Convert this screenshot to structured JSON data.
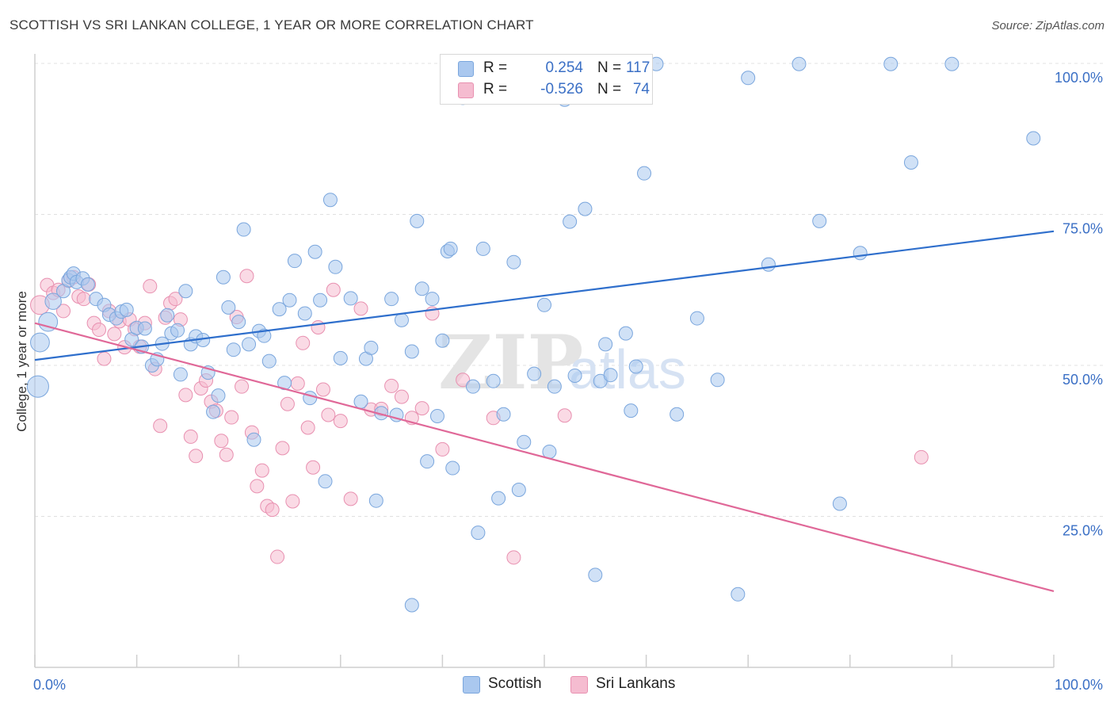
{
  "title": "SCOTTISH VS SRI LANKAN COLLEGE, 1 YEAR OR MORE CORRELATION CHART",
  "source": "Source: ZipAtlas.com",
  "watermark": {
    "zip": "ZIP",
    "atlas": "atlas"
  },
  "legend": {
    "r_label": "R =",
    "n_label": "N =",
    "rows": [
      {
        "r": "0.254",
        "n": "117"
      },
      {
        "r": "-0.526",
        "n": "74"
      }
    ]
  },
  "colors": {
    "scottish_fill": "#aac8ef",
    "scottish_stroke": "#7aa6dd",
    "scottish_line": "#2f6fcc",
    "srilankan_fill": "#f5bcd0",
    "srilankan_stroke": "#e890b0",
    "srilankan_line": "#e06898",
    "axis_text": "#3a6fc5",
    "grid": "#e0e0e0"
  },
  "chart_data": {
    "type": "scatter",
    "title": "SCOTTISH VS SRI LANKAN COLLEGE, 1 YEAR OR MORE CORRELATION CHART",
    "xlabel": "",
    "ylabel": "College, 1 year or more",
    "xlim": [
      0,
      100
    ],
    "ylim": [
      0,
      102
    ],
    "x_tick_labels": [
      "0.0%",
      "100.0%"
    ],
    "y_ticks": [
      25,
      50,
      75,
      100
    ],
    "y_tick_labels": [
      "25.0%",
      "50.0%",
      "75.0%",
      "100.0%"
    ],
    "grid": true,
    "legend_position": "top-center",
    "series": [
      {
        "name": "Scottish",
        "r": 0.254,
        "n": 117,
        "trend": {
          "x": [
            0,
            100
          ],
          "y": [
            50.9,
            72.2
          ]
        },
        "points": [
          [
            0.3,
            46.5,
            16
          ],
          [
            0.5,
            53.8,
            14
          ],
          [
            1.3,
            57.2,
            14
          ],
          [
            1.8,
            60.6,
            12
          ],
          [
            2.8,
            62.3,
            10
          ],
          [
            3.3,
            64.1,
            10
          ],
          [
            3.5,
            64.6,
            10
          ],
          [
            3.8,
            65.2,
            10
          ],
          [
            4.1,
            63.8,
            10
          ],
          [
            4.7,
            64.4,
            10
          ],
          [
            5.2,
            63.4,
            10
          ],
          [
            6.0,
            61.0,
            10
          ],
          [
            6.8,
            60.0,
            10
          ],
          [
            7.3,
            58.4,
            10
          ],
          [
            8.0,
            57.8,
            10
          ],
          [
            8.5,
            58.9,
            10
          ],
          [
            9.0,
            59.2,
            10
          ],
          [
            9.5,
            54.3,
            10
          ],
          [
            10.0,
            56.2,
            10
          ],
          [
            10.5,
            53.1,
            10
          ],
          [
            10.8,
            56.1,
            10
          ],
          [
            11.5,
            50.0,
            10
          ],
          [
            12.0,
            51.0,
            10
          ],
          [
            12.5,
            53.6,
            10
          ],
          [
            13.0,
            58.3,
            10
          ],
          [
            13.4,
            55.3,
            10
          ],
          [
            14.0,
            55.8,
            10
          ],
          [
            14.3,
            48.5,
            10
          ],
          [
            14.8,
            62.3,
            10
          ],
          [
            15.3,
            53.5,
            10
          ],
          [
            15.8,
            54.8,
            10
          ],
          [
            16.5,
            54.2,
            10
          ],
          [
            17.0,
            48.8,
            10
          ],
          [
            17.5,
            42.3,
            10
          ],
          [
            18.0,
            45.0,
            10
          ],
          [
            18.5,
            64.6,
            10
          ],
          [
            19.0,
            59.6,
            10
          ],
          [
            19.5,
            52.6,
            10
          ],
          [
            20.0,
            57.2,
            10
          ],
          [
            20.5,
            72.5,
            10
          ],
          [
            21.0,
            53.5,
            10
          ],
          [
            21.5,
            37.7,
            10
          ],
          [
            22.0,
            55.7,
            10
          ],
          [
            22.5,
            54.9,
            10
          ],
          [
            23.0,
            50.7,
            10
          ],
          [
            24.0,
            59.3,
            10
          ],
          [
            24.5,
            47.1,
            10
          ],
          [
            25.0,
            60.8,
            10
          ],
          [
            25.5,
            67.3,
            10
          ],
          [
            26.5,
            58.6,
            10
          ],
          [
            27.0,
            44.6,
            10
          ],
          [
            27.5,
            68.8,
            10
          ],
          [
            28.0,
            60.8,
            10
          ],
          [
            28.5,
            30.8,
            10
          ],
          [
            29.0,
            77.4,
            10
          ],
          [
            29.5,
            66.3,
            10
          ],
          [
            30.0,
            51.2,
            10
          ],
          [
            31.0,
            61.1,
            10
          ],
          [
            32.0,
            44.0,
            10
          ],
          [
            32.5,
            51.1,
            10
          ],
          [
            33.0,
            52.9,
            10
          ],
          [
            34.0,
            42.1,
            10
          ],
          [
            35.0,
            61.0,
            10
          ],
          [
            36.0,
            57.5,
            10
          ],
          [
            37.0,
            52.3,
            10
          ],
          [
            37.5,
            73.9,
            10
          ],
          [
            38.0,
            62.7,
            10
          ],
          [
            39.0,
            61.0,
            10
          ],
          [
            40.0,
            54.1,
            10
          ],
          [
            40.5,
            68.9,
            10
          ],
          [
            41.0,
            33.0,
            10
          ],
          [
            42.0,
            94.3,
            10
          ],
          [
            43.0,
            46.5,
            10
          ],
          [
            44.0,
            69.3,
            10
          ],
          [
            45.0,
            47.4,
            10
          ],
          [
            46.0,
            41.9,
            10
          ],
          [
            47.0,
            67.1,
            10
          ],
          [
            48.0,
            37.3,
            10
          ],
          [
            49.0,
            48.6,
            10
          ],
          [
            50.0,
            60.0,
            10
          ],
          [
            51.0,
            46.5,
            10
          ],
          [
            52.0,
            94.0,
            10
          ],
          [
            53.0,
            48.3,
            10
          ],
          [
            54.0,
            75.9,
            10
          ],
          [
            55.0,
            15.3,
            10
          ],
          [
            56.0,
            53.5,
            10
          ],
          [
            57.0,
            99.9,
            10
          ],
          [
            58.0,
            55.3,
            10
          ],
          [
            59.0,
            49.8,
            10
          ],
          [
            61.0,
            99.9,
            10
          ],
          [
            63.0,
            41.9,
            10
          ],
          [
            65.0,
            57.8,
            10
          ],
          [
            67.0,
            47.6,
            10
          ],
          [
            69.0,
            12.1,
            10
          ],
          [
            70.0,
            97.6,
            10
          ],
          [
            72.0,
            66.7,
            10
          ],
          [
            75.0,
            99.9,
            10
          ],
          [
            77.0,
            73.9,
            10
          ],
          [
            79.0,
            27.1,
            10
          ],
          [
            81.0,
            68.6,
            10
          ],
          [
            84.0,
            99.9,
            10
          ],
          [
            86.0,
            83.6,
            10
          ],
          [
            90.0,
            99.9,
            10
          ],
          [
            98.0,
            87.6,
            10
          ],
          [
            33.5,
            27.6,
            10
          ],
          [
            35.5,
            41.8,
            10
          ],
          [
            37.0,
            10.3,
            10
          ],
          [
            43.5,
            22.3,
            10
          ],
          [
            45.5,
            28.0,
            10
          ],
          [
            47.5,
            29.4,
            10
          ],
          [
            50.5,
            35.7,
            10
          ],
          [
            52.5,
            73.8,
            10
          ],
          [
            55.5,
            47.4,
            10
          ],
          [
            56.5,
            48.4,
            10
          ],
          [
            58.5,
            42.5,
            10
          ],
          [
            59.8,
            81.8,
            10
          ],
          [
            38.5,
            34.1,
            10
          ],
          [
            39.5,
            41.6,
            10
          ],
          [
            40.8,
            69.3,
            10
          ]
        ]
      },
      {
        "name": "Sri Lankans",
        "r": -0.526,
        "n": 74,
        "trend": {
          "x": [
            0,
            100
          ],
          "y": [
            57.0,
            12.6
          ]
        },
        "points": [
          [
            0.5,
            60.0,
            14
          ],
          [
            1.2,
            63.3,
            10
          ],
          [
            1.8,
            62.0,
            10
          ],
          [
            2.3,
            62.5,
            10
          ],
          [
            2.8,
            59.0,
            10
          ],
          [
            3.3,
            64.0,
            10
          ],
          [
            3.8,
            64.6,
            10
          ],
          [
            4.3,
            61.4,
            10
          ],
          [
            4.8,
            61.0,
            10
          ],
          [
            5.3,
            63.4,
            10
          ],
          [
            5.8,
            57.0,
            10
          ],
          [
            6.3,
            55.9,
            10
          ],
          [
            6.8,
            51.1,
            10
          ],
          [
            7.3,
            59.0,
            10
          ],
          [
            7.8,
            55.2,
            10
          ],
          [
            8.3,
            57.3,
            10
          ],
          [
            8.8,
            53.0,
            10
          ],
          [
            9.3,
            57.6,
            10
          ],
          [
            9.8,
            56.0,
            10
          ],
          [
            10.3,
            53.1,
            10
          ],
          [
            10.8,
            57.0,
            10
          ],
          [
            11.3,
            63.1,
            10
          ],
          [
            11.8,
            49.4,
            10
          ],
          [
            12.3,
            40.0,
            10
          ],
          [
            12.8,
            57.9,
            10
          ],
          [
            13.3,
            60.3,
            10
          ],
          [
            13.8,
            61.0,
            10
          ],
          [
            14.3,
            57.6,
            10
          ],
          [
            14.8,
            45.1,
            10
          ],
          [
            15.3,
            38.2,
            10
          ],
          [
            15.8,
            35.0,
            10
          ],
          [
            16.3,
            46.2,
            10
          ],
          [
            16.8,
            47.5,
            10
          ],
          [
            17.3,
            44.0,
            10
          ],
          [
            17.8,
            42.5,
            10
          ],
          [
            18.3,
            37.5,
            10
          ],
          [
            18.8,
            35.2,
            10
          ],
          [
            19.3,
            41.4,
            10
          ],
          [
            19.8,
            58.0,
            10
          ],
          [
            20.3,
            46.5,
            10
          ],
          [
            20.8,
            64.8,
            10
          ],
          [
            21.3,
            38.9,
            10
          ],
          [
            21.8,
            30.0,
            10
          ],
          [
            22.3,
            32.6,
            10
          ],
          [
            22.8,
            26.7,
            10
          ],
          [
            23.3,
            26.1,
            10
          ],
          [
            23.8,
            18.3,
            10
          ],
          [
            24.3,
            36.3,
            10
          ],
          [
            24.8,
            43.6,
            10
          ],
          [
            25.3,
            27.5,
            10
          ],
          [
            25.8,
            47.0,
            10
          ],
          [
            26.3,
            53.7,
            10
          ],
          [
            26.8,
            39.7,
            10
          ],
          [
            27.3,
            33.1,
            10
          ],
          [
            27.8,
            56.3,
            10
          ],
          [
            28.3,
            46.0,
            10
          ],
          [
            28.8,
            41.8,
            10
          ],
          [
            29.3,
            62.5,
            10
          ],
          [
            30.0,
            40.8,
            10
          ],
          [
            31.0,
            27.9,
            10
          ],
          [
            32.0,
            59.4,
            10
          ],
          [
            33.0,
            42.7,
            10
          ],
          [
            34.0,
            42.8,
            10
          ],
          [
            35.0,
            46.6,
            10
          ],
          [
            36.0,
            44.8,
            10
          ],
          [
            37.0,
            41.3,
            10
          ],
          [
            38.0,
            42.9,
            10
          ],
          [
            39.0,
            58.6,
            10
          ],
          [
            40.0,
            36.1,
            10
          ],
          [
            42.0,
            47.6,
            10
          ],
          [
            45.0,
            41.3,
            10
          ],
          [
            47.0,
            18.2,
            10
          ],
          [
            52.0,
            41.7,
            10
          ],
          [
            87.0,
            34.8,
            10
          ]
        ]
      }
    ]
  },
  "bottom_legend": [
    {
      "label": "Scottish"
    },
    {
      "label": "Sri Lankans"
    }
  ]
}
